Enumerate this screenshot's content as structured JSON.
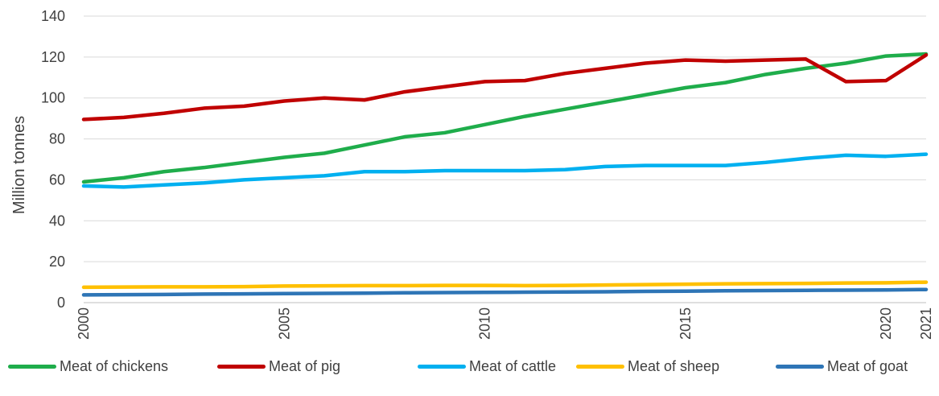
{
  "chart_data": {
    "type": "line",
    "title": "",
    "xlabel": "",
    "ylabel": "Million tonnes",
    "ylim": [
      0,
      140
    ],
    "yticks": [
      0,
      20,
      40,
      60,
      80,
      100,
      120,
      140
    ],
    "xlim": [
      2000,
      2021
    ],
    "xtick_labels": [
      "2000",
      "2005",
      "2010",
      "2015",
      "2020",
      "2021"
    ],
    "grid": "horizontal",
    "legend_position": "bottom",
    "x": [
      2000,
      2001,
      2002,
      2003,
      2004,
      2005,
      2006,
      2007,
      2008,
      2009,
      2010,
      2011,
      2012,
      2013,
      2014,
      2015,
      2016,
      2017,
      2018,
      2019,
      2020,
      2021
    ],
    "series": [
      {
        "name": "Meat of chickens",
        "color": "#1fad4b",
        "values": [
          59,
          61,
          64,
          66,
          68.5,
          71,
          73,
          77,
          81,
          83,
          87,
          91,
          94.5,
          98,
          101.5,
          105,
          107.5,
          111.5,
          114.5,
          117,
          120.5,
          121.5
        ]
      },
      {
        "name": "Meat of pig",
        "color": "#c00000",
        "values": [
          89.5,
          90.5,
          92.5,
          95,
          96,
          98.5,
          100,
          99,
          103,
          105.5,
          108,
          108.5,
          112,
          114.5,
          117,
          118.5,
          118,
          118.5,
          119,
          108,
          108.5,
          121
        ]
      },
      {
        "name": "Meat of cattle",
        "color": "#00b0f0",
        "values": [
          57,
          56.5,
          57.5,
          58.5,
          60,
          61,
          62,
          64,
          64,
          64.5,
          64.5,
          64.5,
          65,
          66.5,
          67,
          67,
          67,
          68.5,
          70.5,
          72,
          71.5,
          72.5
        ]
      },
      {
        "name": "Meat of sheep",
        "color": "#ffc000",
        "values": [
          7.5,
          7.6,
          7.7,
          7.7,
          7.8,
          8.1,
          8.2,
          8.3,
          8.3,
          8.4,
          8.4,
          8.3,
          8.4,
          8.6,
          8.8,
          9.0,
          9.2,
          9.3,
          9.4,
          9.6,
          9.7,
          10.0
        ]
      },
      {
        "name": "Meat of goat",
        "color": "#2e75b6",
        "values": [
          3.8,
          3.9,
          4.0,
          4.2,
          4.3,
          4.4,
          4.5,
          4.6,
          4.8,
          4.9,
          5.0,
          5.1,
          5.2,
          5.3,
          5.5,
          5.6,
          5.8,
          5.9,
          6.0,
          6.1,
          6.2,
          6.4
        ]
      }
    ]
  }
}
